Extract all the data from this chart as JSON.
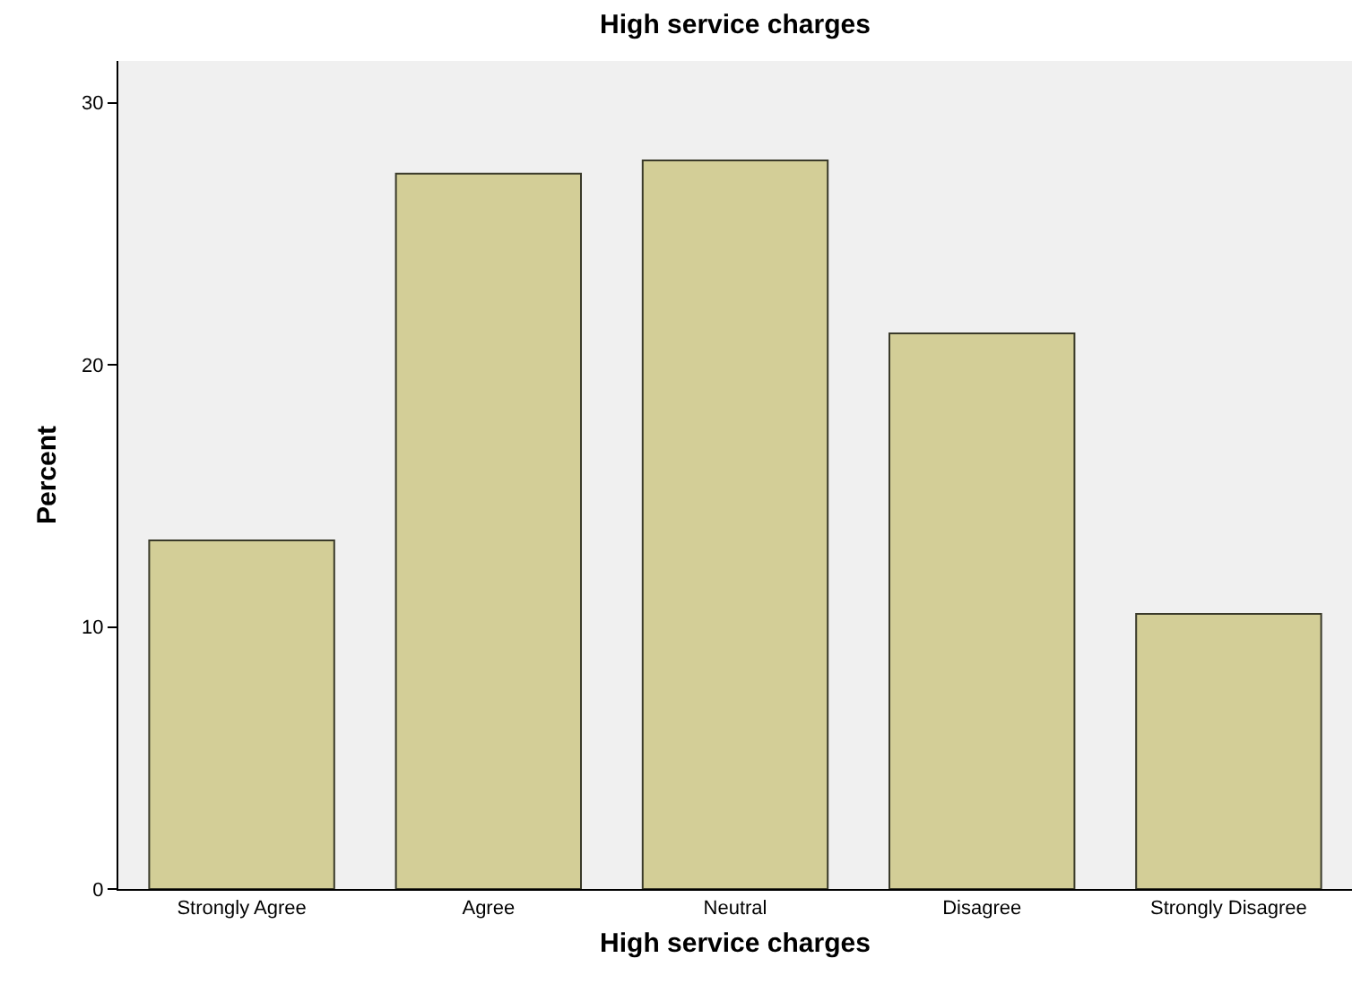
{
  "chart_data": {
    "type": "bar",
    "title": "High service charges",
    "xlabel": "High service charges",
    "ylabel": "Percent",
    "categories": [
      "Strongly Agree",
      "Agree",
      "Neutral",
      "Disagree",
      "Strongly Disagree"
    ],
    "values": [
      13.3,
      27.3,
      27.8,
      21.2,
      10.5
    ],
    "color": "#d3ce97",
    "ylim": [
      0,
      31.6
    ],
    "yticks": [
      0,
      10,
      20,
      30
    ],
    "grid": false
  }
}
